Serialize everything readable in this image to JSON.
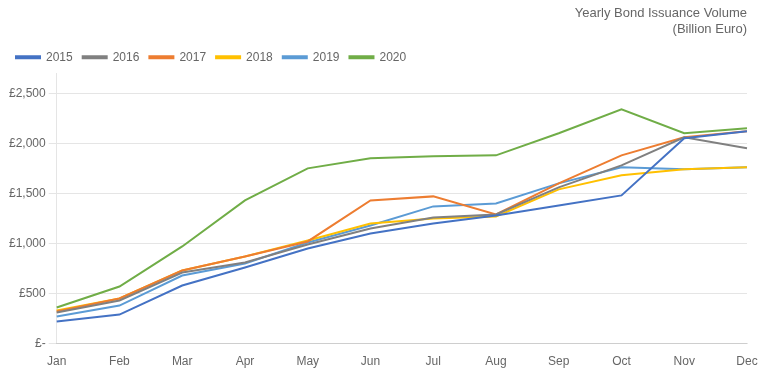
{
  "chart_data": {
    "type": "line",
    "title": "Yearly Bond Issuance Volume\n(Billion Euro)",
    "categories": [
      "Jan",
      "Feb",
      "Mar",
      "Apr",
      "May",
      "Jun",
      "Jul",
      "Aug",
      "Sep",
      "Oct",
      "Nov",
      "Dec"
    ],
    "series": [
      {
        "name": "2015",
        "color": "#4472C4",
        "values": [
          220,
          290,
          580,
          760,
          950,
          1100,
          1200,
          1280,
          1380,
          1480,
          2050,
          2120
        ]
      },
      {
        "name": "2016",
        "color": "#808080",
        "values": [
          310,
          430,
          710,
          810,
          990,
          1150,
          1260,
          1290,
          1560,
          1780,
          2060,
          1950
        ]
      },
      {
        "name": "2017",
        "color": "#ED7D31",
        "values": [
          320,
          450,
          730,
          870,
          1020,
          1430,
          1470,
          1290,
          1600,
          1880,
          2060,
          2120
        ]
      },
      {
        "name": "2018",
        "color": "#FFC000",
        "values": [
          330,
          450,
          730,
          870,
          1030,
          1200,
          1250,
          1270,
          1540,
          1680,
          1740,
          1760
        ]
      },
      {
        "name": "2019",
        "color": "#5B9BD5",
        "values": [
          270,
          380,
          680,
          800,
          1010,
          1180,
          1370,
          1400,
          1600,
          1760,
          1740,
          1760
        ]
      },
      {
        "name": "2020",
        "color": "#70AD47",
        "values": [
          360,
          570,
          970,
          1430,
          1750,
          1850,
          1870,
          1880,
          2100,
          2340,
          2100,
          2150
        ]
      }
    ],
    "ylim": [
      0,
      2700
    ],
    "yticks": [
      {
        "value": 0,
        "label": "£-"
      },
      {
        "value": 500,
        "label": "£500"
      },
      {
        "value": 1000,
        "label": "£1,000"
      },
      {
        "value": 1500,
        "label": "£1,500"
      },
      {
        "value": 2000,
        "label": "£2,000"
      },
      {
        "value": 2500,
        "label": "£2,500"
      }
    ],
    "grid": true,
    "legend": "upper left"
  }
}
